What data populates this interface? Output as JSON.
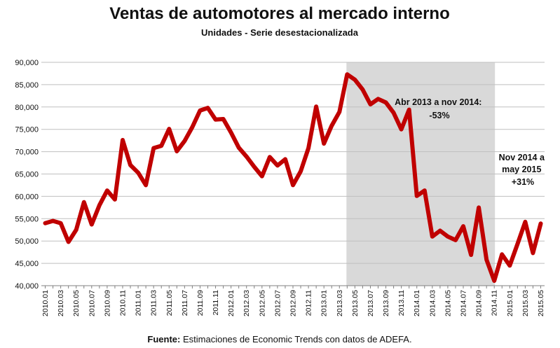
{
  "chart_data": {
    "type": "line",
    "title": "Ventas de automotores al mercado interno",
    "subtitle": "Unidades - Serie desestacionalizada",
    "xlabel": "",
    "ylabel": "",
    "ylim": [
      40000,
      90000
    ],
    "yticks": [
      40000,
      45000,
      50000,
      55000,
      60000,
      65000,
      70000,
      75000,
      80000,
      85000,
      90000
    ],
    "ytick_labels": [
      "40,000",
      "45,000",
      "50,000",
      "55,000",
      "60,000",
      "65,000",
      "70,000",
      "75,000",
      "80,000",
      "85,000",
      "90,000"
    ],
    "grid": true,
    "line_color": "#c00000",
    "highlight_color": "#d9d9d9",
    "x": [
      "2010.01",
      "2010.02",
      "2010.03",
      "2010.04",
      "2010.05",
      "2010.06",
      "2010.07",
      "2010.08",
      "2010.09",
      "2010.10",
      "2010.11",
      "2010.12",
      "2011.01",
      "2011.02",
      "2011.03",
      "2011.04",
      "2011.05",
      "2011.06",
      "2011.07",
      "2011.08",
      "2011.09",
      "2011.10",
      "2011.11",
      "2011.12",
      "2012.01",
      "2012.02",
      "2012.03",
      "2012.04",
      "2012.05",
      "2012.06",
      "2012.07",
      "2012.08",
      "2012.09",
      "2012.10",
      "2012.11",
      "2012.12",
      "2013.01",
      "2013.02",
      "2013.03",
      "2013.04",
      "2013.05",
      "2013.06",
      "2013.07",
      "2013.08",
      "2013.09",
      "2013.10",
      "2013.11",
      "2013.12",
      "2014.01",
      "2014.02",
      "2014.03",
      "2014.04",
      "2014.05",
      "2014.06",
      "2014.07",
      "2014.08",
      "2014.09",
      "2014.10",
      "2014.11",
      "2014.12",
      "2015.01",
      "2015.02",
      "2015.03",
      "2015.04",
      "2015.05"
    ],
    "xtick_labels": [
      "2010.01",
      "2010.03",
      "2010.05",
      "2010.07",
      "2010.09",
      "2010.11",
      "2011.01",
      "2011.03",
      "2011.05",
      "2011.07",
      "2011.09",
      "2011.11",
      "2012.01",
      "2012.03",
      "2012.05",
      "2012.07",
      "2012.09",
      "2012.11",
      "2013.01",
      "2013.03",
      "2013.05",
      "2013.07",
      "2013.09",
      "2013.11",
      "2014.01",
      "2014.03",
      "2014.05",
      "2014.07",
      "2014.09",
      "2014.11",
      "2015.01",
      "2015.03",
      "2015.05"
    ],
    "series": [
      {
        "values": [
          54000,
          54500,
          54000,
          49800,
          52500,
          58700,
          53700,
          58000,
          61300,
          59300,
          72600,
          67000,
          65300,
          62500,
          70800,
          71300,
          75100,
          70100,
          72400,
          75500,
          79200,
          79800,
          77200,
          77300,
          74300,
          70900,
          68900,
          66600,
          64500,
          68800,
          66900,
          68300,
          62500,
          65600,
          70800,
          80100,
          71800,
          75800,
          78900,
          87300,
          86100,
          83900,
          80600,
          81800,
          81000,
          78700,
          75000,
          79400,
          60100,
          61300,
          51000,
          52300,
          51000,
          50200,
          53300,
          46900,
          57500,
          45800,
          41100,
          47000,
          44500,
          49300,
          54300,
          47300,
          53900
        ]
      }
    ],
    "highlight_range": [
      "2013.04",
      "2014.11"
    ],
    "annotations": [
      {
        "lines": [
          "Abr 2013 a nov 2014:",
          "-53%"
        ]
      },
      {
        "lines": [
          "Nov 2014 a",
          "may 2015",
          "+31%"
        ]
      }
    ],
    "source_label": "Fuente:",
    "source_text": " Estimaciones de Economic Trends con datos de ADEFA."
  }
}
